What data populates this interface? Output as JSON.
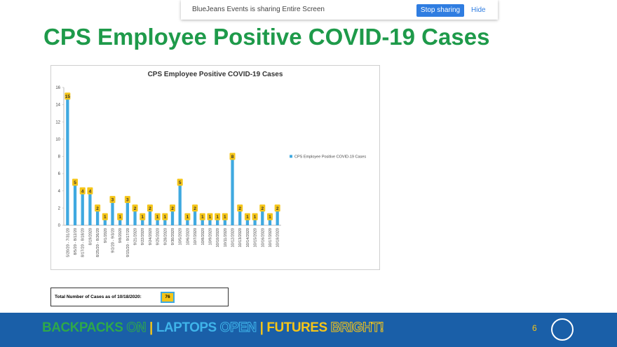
{
  "share_banner": {
    "message": "BlueJeans Events is sharing Entire Screen",
    "stop": "Stop sharing",
    "hide": "Hide"
  },
  "slide": {
    "title": "CPS Employee Positive COVID-19 Cases",
    "total_label": "Total Number of Cases as of 10/18/2020:",
    "total_value": 76,
    "slogan": [
      {
        "text": "BACKPACKS",
        "color": "#2ea84a",
        "outline": false
      },
      {
        "text": "ON",
        "color": "#2ea84a",
        "outline": true
      },
      {
        "text": "|",
        "color": "#f5c518",
        "outline": false
      },
      {
        "text": "LAPTOPS",
        "color": "#3fb4ea",
        "outline": false
      },
      {
        "text": "OPEN",
        "color": "#3fb4ea",
        "outline": true
      },
      {
        "text": "|",
        "color": "#f5c518",
        "outline": false
      },
      {
        "text": "FUTURES",
        "color": "#f5c518",
        "outline": false
      },
      {
        "text": "BRIGHT!",
        "color": "#f5c518",
        "outline": true
      }
    ],
    "page_number": 6
  },
  "chart_data": {
    "type": "bar",
    "title": "CPS Employee Positive COVID-19 Cases",
    "categories": [
      "5/20/20 - 7/31/20",
      "8/5/20 - 8/12/20",
      "8/17/20 - 8/18/20",
      "8/19/2020",
      "8/25/20 - 8/26/20",
      "9/1/2020",
      "9/2/20 - 9/3/20",
      "9/8/2020",
      "9/15/20 - 9/17/20",
      "9/21/2020",
      "9/22/2020",
      "9/24/2020",
      "9/25/2020",
      "9/28/2020",
      "9/30/2020",
      "10/5/2020",
      "10/6/2020",
      "10/7/2020",
      "10/8/2020",
      "10/9/2020",
      "10/10/2020",
      "10/11/2020",
      "10/12/2020",
      "10/13/2020",
      "10/14/2020",
      "10/15/2020",
      "10/16/2020",
      "10/17/2020",
      "10/18/2020"
    ],
    "series": [
      {
        "name": "CPS Employee Positive COVID-19 Cases",
        "color": "#3fa9e0",
        "values": [
          15,
          5,
          4,
          4,
          2,
          1,
          3,
          1,
          3,
          2,
          1,
          2,
          1,
          1,
          2,
          5,
          1,
          2,
          1,
          1,
          1,
          1,
          8,
          2,
          1,
          1,
          2,
          1,
          2
        ]
      }
    ],
    "ylim": [
      0,
      16
    ],
    "yticks": [
      0,
      2,
      4,
      6,
      8,
      10,
      12,
      14,
      16
    ],
    "grid": false,
    "data_labels": true,
    "data_label_color": "#f5c518",
    "legend": "right"
  }
}
